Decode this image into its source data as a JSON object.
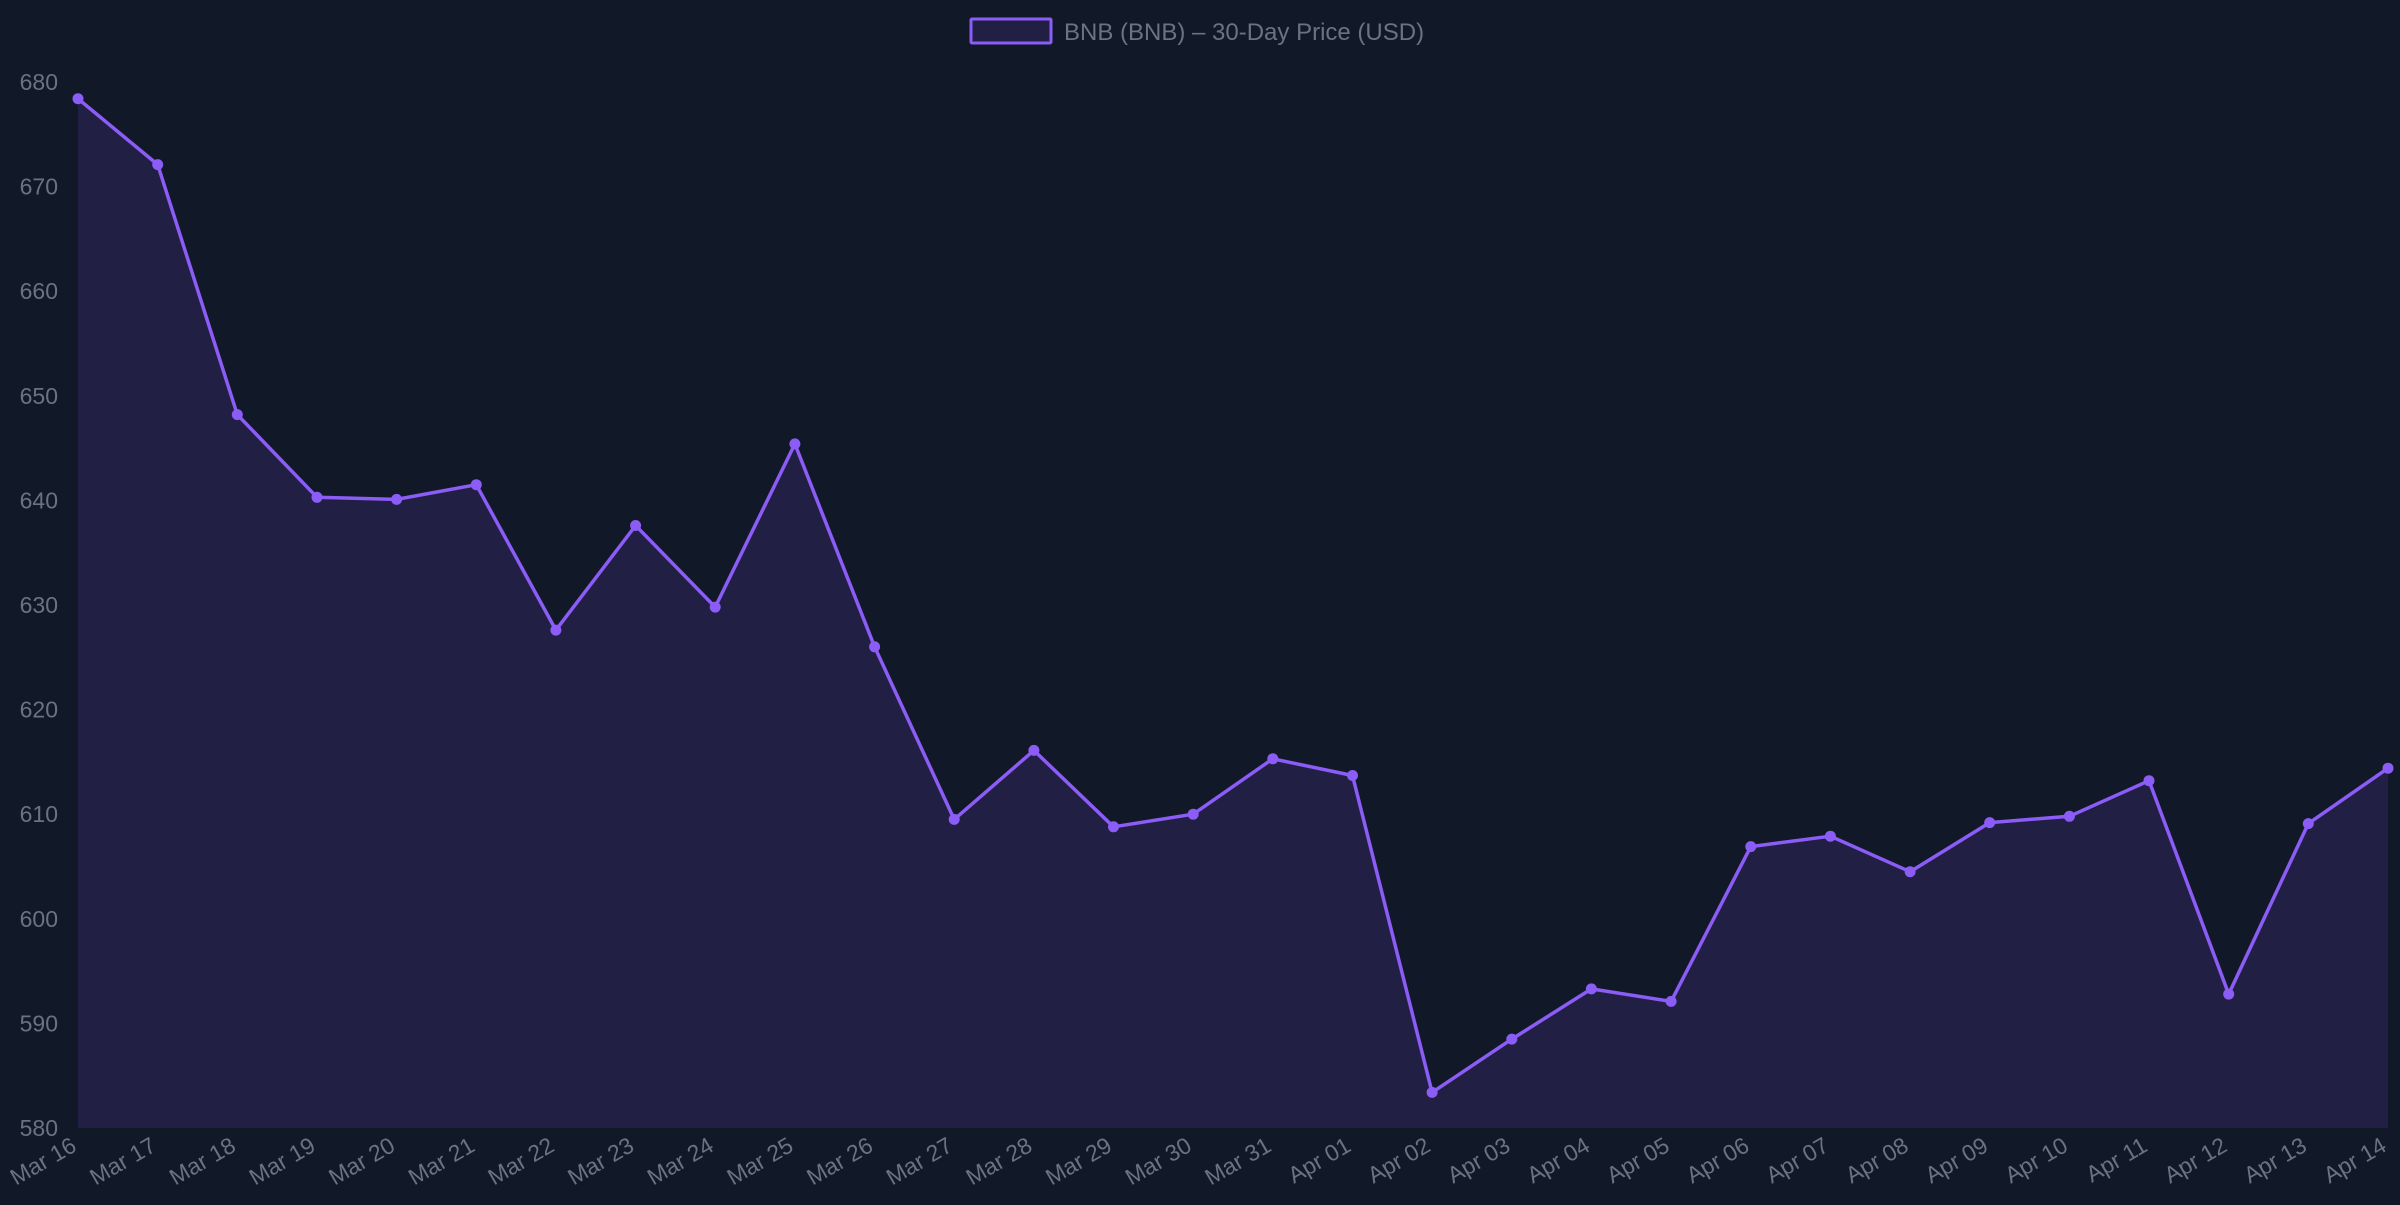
{
  "chart_data": {
    "type": "area",
    "title": "",
    "xlabel": "",
    "ylabel": "",
    "ylim": [
      580,
      680
    ],
    "yticks": [
      580,
      590,
      600,
      610,
      620,
      630,
      640,
      650,
      660,
      670,
      680
    ],
    "grid": false,
    "legend": {
      "placement": "top-center"
    },
    "categories": [
      "Mar 16",
      "Mar 17",
      "Mar 18",
      "Mar 19",
      "Mar 20",
      "Mar 21",
      "Mar 22",
      "Mar 23",
      "Mar 24",
      "Mar 25",
      "Mar 26",
      "Mar 27",
      "Mar 28",
      "Mar 29",
      "Mar 30",
      "Mar 31",
      "Apr 01",
      "Apr 02",
      "Apr 03",
      "Apr 04",
      "Apr 05",
      "Apr 06",
      "Apr 07",
      "Apr 08",
      "Apr 09",
      "Apr 10",
      "Apr 11",
      "Apr 12",
      "Apr 13",
      "Apr 14"
    ],
    "series": [
      {
        "name": "BNB (BNB) – 30-Day Price (USD)",
        "color": "#8b5cf6",
        "fill": "#221f44",
        "values": [
          678.4,
          672.1,
          648.2,
          640.3,
          640.1,
          641.5,
          627.6,
          637.6,
          629.8,
          645.4,
          626.0,
          609.5,
          616.1,
          608.8,
          610.0,
          615.3,
          613.7,
          583.4,
          588.5,
          593.3,
          592.1,
          606.9,
          607.9,
          604.5,
          609.2,
          609.8,
          613.2,
          592.8,
          609.1,
          614.4
        ]
      }
    ]
  },
  "colors": {
    "background": "#111827",
    "tick_text": "#6b7280",
    "legend_text": "#6b7280",
    "line": "#8b5cf6",
    "area_fill": "#221f44"
  }
}
